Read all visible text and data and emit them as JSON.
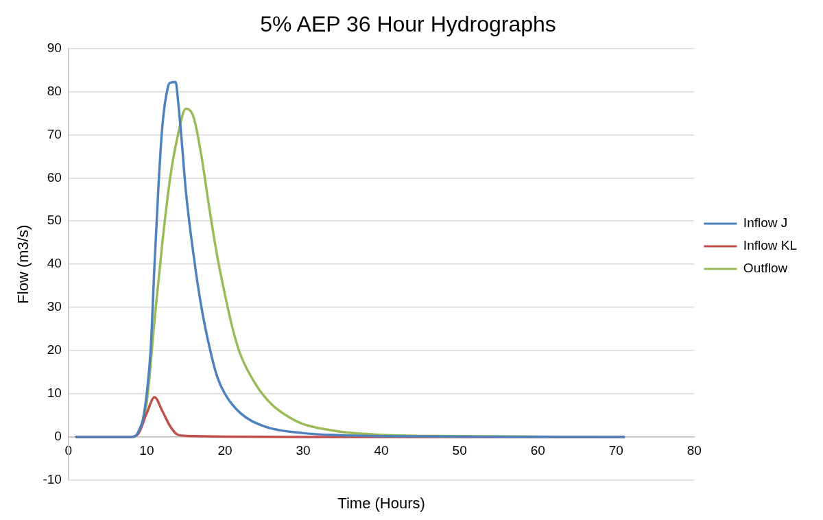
{
  "chart_data": {
    "type": "line",
    "title": "5% AEP 36 Hour Hydrographs",
    "xlabel": "Time (Hours)",
    "ylabel": "Flow (m3/s)",
    "xlim": [
      0,
      80
    ],
    "xticks": [
      0,
      10,
      20,
      30,
      40,
      50,
      60,
      70,
      80
    ],
    "ylim": [
      -10,
      90
    ],
    "yticks": [
      -10,
      0,
      10,
      20,
      30,
      40,
      50,
      60,
      70,
      80,
      90
    ],
    "grid": "y",
    "legend": "right",
    "marker": "none",
    "line_style": "solid",
    "series": [
      {
        "name": "Inflow J",
        "color": "#4f81bd",
        "x": [
          1,
          8,
          8.7,
          9,
          9.5,
          10,
          10.5,
          11,
          11.5,
          12,
          12.7,
          13,
          13.7,
          14,
          14.5,
          15,
          16,
          17,
          18,
          19,
          20,
          22,
          25,
          30,
          35,
          40,
          50,
          71
        ],
        "values": [
          0,
          0,
          0.5,
          1.5,
          4,
          10,
          20,
          40,
          58,
          72,
          81,
          82,
          82.2,
          78,
          68,
          57,
          42,
          30,
          21,
          14,
          10,
          5.5,
          2.5,
          0.9,
          0.4,
          0.2,
          0.1,
          0
        ]
      },
      {
        "name": "Inflow KL",
        "color": "#c0504d",
        "x": [
          1,
          8,
          9,
          10,
          11,
          12,
          13,
          14,
          16,
          20,
          30,
          71
        ],
        "values": [
          0,
          0,
          1,
          5.5,
          9.2,
          6,
          2.5,
          0.5,
          0.2,
          0.1,
          0,
          0
        ]
      },
      {
        "name": "Outflow",
        "color": "#9bbb59",
        "x": [
          1,
          8,
          9,
          10,
          11,
          12,
          13,
          14,
          15,
          16,
          17,
          18,
          19,
          20,
          21,
          22,
          24,
          26,
          28,
          30,
          35,
          40,
          50,
          71
        ],
        "values": [
          0,
          0,
          1,
          8,
          27,
          45,
          60,
          70,
          76,
          74,
          65,
          53,
          42,
          33,
          25,
          19,
          12,
          7.5,
          4.8,
          3,
          1.2,
          0.5,
          0.2,
          0
        ]
      }
    ]
  }
}
